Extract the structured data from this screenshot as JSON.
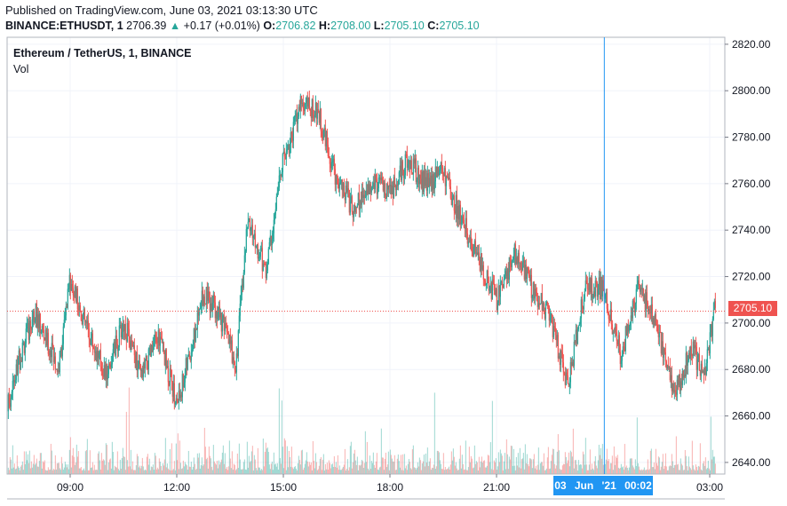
{
  "header": {
    "published": "Published on TradingView.com, June 03, 2021 03:13:30 UTC",
    "symbol": "BINANCE:ETHUSDT, 1",
    "last": "2706.39",
    "change_arrow": "▲",
    "change": "+0.17 (+0.01%)",
    "o_label": "O:",
    "o_value": "2706.82",
    "h_label": "H:",
    "h_value": "2708.00",
    "l_label": "L:",
    "l_value": "2705.10",
    "c_label": "C:",
    "c_value": "2705.10"
  },
  "legend": {
    "title": "Ethereum / TetherUS, 1, BINANCE",
    "volume": "Vol"
  },
  "crosshair": {
    "time_label": "03 Jun '21   00:02"
  },
  "last_price_label": "2705.10",
  "colors": {
    "up": "#26a69a",
    "down": "#ef5350",
    "crosshair": "#2196f3",
    "grid": "#f0f3fa"
  },
  "chart_data": {
    "type": "candlestick",
    "interval": "1 minute",
    "y_axis": {
      "min": 2635,
      "max": 2823,
      "ticks": [
        2640,
        2660,
        2680,
        2700,
        2720,
        2740,
        2760,
        2780,
        2800,
        2820
      ]
    },
    "x_ticks": [
      "09:00",
      "12:00",
      "15:00",
      "18:00",
      "21:00",
      "03:00"
    ],
    "last_price": 2705.1,
    "close_series_approx": [
      {
        "time": "07:05",
        "price": 2655
      },
      {
        "time": "07:40",
        "price": 2690
      },
      {
        "time": "08:00",
        "price": 2705
      },
      {
        "time": "08:40",
        "price": 2680
      },
      {
        "time": "09:00",
        "price": 2718
      },
      {
        "time": "09:30",
        "price": 2697
      },
      {
        "time": "10:00",
        "price": 2678
      },
      {
        "time": "10:30",
        "price": 2700
      },
      {
        "time": "11:00",
        "price": 2677
      },
      {
        "time": "11:30",
        "price": 2695
      },
      {
        "time": "12:00",
        "price": 2665
      },
      {
        "time": "12:25",
        "price": 2690
      },
      {
        "time": "12:45",
        "price": 2712
      },
      {
        "time": "13:10",
        "price": 2705
      },
      {
        "time": "13:40",
        "price": 2683
      },
      {
        "time": "14:00",
        "price": 2745
      },
      {
        "time": "14:30",
        "price": 2722
      },
      {
        "time": "15:00",
        "price": 2770
      },
      {
        "time": "15:30",
        "price": 2795
      },
      {
        "time": "16:00",
        "price": 2790
      },
      {
        "time": "16:30",
        "price": 2762
      },
      {
        "time": "17:00",
        "price": 2748
      },
      {
        "time": "17:30",
        "price": 2762
      },
      {
        "time": "18:00",
        "price": 2755
      },
      {
        "time": "18:30",
        "price": 2770
      },
      {
        "time": "19:00",
        "price": 2760
      },
      {
        "time": "19:30",
        "price": 2765
      },
      {
        "time": "20:00",
        "price": 2745
      },
      {
        "time": "20:30",
        "price": 2727
      },
      {
        "time": "21:00",
        "price": 2710
      },
      {
        "time": "21:30",
        "price": 2730
      },
      {
        "time": "22:00",
        "price": 2715
      },
      {
        "time": "22:30",
        "price": 2702
      },
      {
        "time": "23:00",
        "price": 2673
      },
      {
        "time": "23:30",
        "price": 2715
      },
      {
        "time": "00:00",
        "price": 2715
      },
      {
        "time": "00:30",
        "price": 2686
      },
      {
        "time": "01:00",
        "price": 2715
      },
      {
        "time": "01:30",
        "price": 2700
      },
      {
        "time": "02:00",
        "price": 2668
      },
      {
        "time": "02:30",
        "price": 2690
      },
      {
        "time": "02:50",
        "price": 2675
      },
      {
        "time": "03:10",
        "price": 2708
      }
    ]
  }
}
